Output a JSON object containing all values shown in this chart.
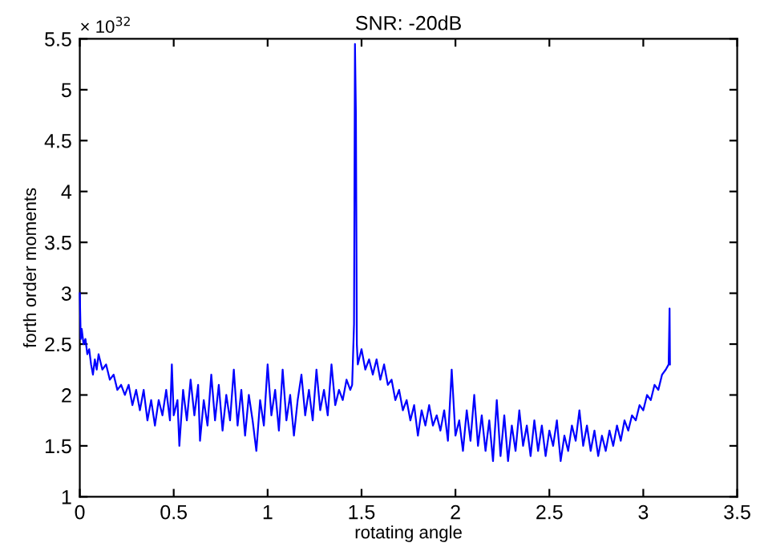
{
  "chart_data": {
    "type": "line",
    "title": "SNR: -20dB",
    "xlabel": "rotating angle",
    "ylabel": "forth order moments",
    "annotations": [
      "× 10$^{32}$"
    ],
    "xlim": [
      0,
      3.5
    ],
    "xticks": [
      0,
      0.5,
      1,
      1.5,
      2,
      2.5,
      3,
      3.5
    ],
    "ylim": [
      1,
      5.5
    ],
    "yticks": [
      1,
      1.5,
      2,
      2.5,
      3,
      3.5,
      4,
      4.5,
      5,
      5.5
    ],
    "grid": false,
    "legend": false,
    "marker": "none",
    "line_style": "solid",
    "series": [
      {
        "color": "#0000ff",
        "x": [
          0,
          0.005,
          0.01,
          0.02,
          0.03,
          0.04,
          0.05,
          0.06,
          0.07,
          0.08,
          0.09,
          0.1,
          0.12,
          0.14,
          0.16,
          0.18,
          0.2,
          0.22,
          0.24,
          0.26,
          0.28,
          0.3,
          0.32,
          0.34,
          0.36,
          0.38,
          0.4,
          0.42,
          0.44,
          0.46,
          0.48,
          0.49,
          0.5,
          0.52,
          0.53,
          0.55,
          0.57,
          0.59,
          0.61,
          0.63,
          0.64,
          0.66,
          0.68,
          0.7,
          0.72,
          0.74,
          0.76,
          0.78,
          0.8,
          0.82,
          0.84,
          0.86,
          0.88,
          0.9,
          0.92,
          0.94,
          0.96,
          0.98,
          1.0,
          1.02,
          1.04,
          1.06,
          1.08,
          1.1,
          1.12,
          1.14,
          1.16,
          1.18,
          1.2,
          1.22,
          1.24,
          1.26,
          1.28,
          1.3,
          1.32,
          1.34,
          1.36,
          1.38,
          1.4,
          1.42,
          1.44,
          1.45,
          1.46,
          1.465,
          1.47,
          1.475,
          1.48,
          1.5,
          1.52,
          1.54,
          1.56,
          1.58,
          1.6,
          1.62,
          1.64,
          1.66,
          1.68,
          1.7,
          1.72,
          1.74,
          1.76,
          1.78,
          1.8,
          1.82,
          1.84,
          1.86,
          1.88,
          1.9,
          1.92,
          1.94,
          1.96,
          1.98,
          2.0,
          2.02,
          2.04,
          2.06,
          2.08,
          2.1,
          2.12,
          2.14,
          2.16,
          2.18,
          2.2,
          2.22,
          2.24,
          2.26,
          2.28,
          2.3,
          2.32,
          2.34,
          2.36,
          2.38,
          2.4,
          2.42,
          2.44,
          2.46,
          2.48,
          2.5,
          2.52,
          2.54,
          2.56,
          2.58,
          2.6,
          2.62,
          2.64,
          2.66,
          2.68,
          2.7,
          2.72,
          2.74,
          2.76,
          2.78,
          2.8,
          2.82,
          2.84,
          2.86,
          2.88,
          2.9,
          2.92,
          2.94,
          2.96,
          2.98,
          3.0,
          3.02,
          3.04,
          3.06,
          3.08,
          3.1,
          3.12,
          3.135,
          3.14,
          3.142
        ],
        "values": [
          3.0,
          2.55,
          2.65,
          2.5,
          2.55,
          2.4,
          2.45,
          2.3,
          2.2,
          2.35,
          2.25,
          2.4,
          2.25,
          2.3,
          2.15,
          2.2,
          2.05,
          2.1,
          2.0,
          2.1,
          1.9,
          2.05,
          1.85,
          2.05,
          1.75,
          1.95,
          1.7,
          1.95,
          1.8,
          2.05,
          1.75,
          2.3,
          1.8,
          1.95,
          1.5,
          2.05,
          1.75,
          2.15,
          1.8,
          2.1,
          1.55,
          1.95,
          1.7,
          2.2,
          1.75,
          2.1,
          1.65,
          2.0,
          1.75,
          2.25,
          1.7,
          2.05,
          1.6,
          2.0,
          1.75,
          1.45,
          1.95,
          1.7,
          2.3,
          1.8,
          2.05,
          1.65,
          2.25,
          1.75,
          2.0,
          1.6,
          1.95,
          2.2,
          1.8,
          2.05,
          1.75,
          2.25,
          1.85,
          2.05,
          1.8,
          2.3,
          1.9,
          2.05,
          1.95,
          2.15,
          2.05,
          2.1,
          2.7,
          5.45,
          4.75,
          2.5,
          2.3,
          2.45,
          2.25,
          2.35,
          2.2,
          2.35,
          2.15,
          2.3,
          2.1,
          2.15,
          1.95,
          2.05,
          1.85,
          1.95,
          1.75,
          1.9,
          1.6,
          1.85,
          1.7,
          1.9,
          1.7,
          1.8,
          1.65,
          1.85,
          1.55,
          2.25,
          1.6,
          1.75,
          1.45,
          1.85,
          1.55,
          2.0,
          1.5,
          1.8,
          1.45,
          1.75,
          1.35,
          1.95,
          1.4,
          1.8,
          1.35,
          1.7,
          1.45,
          1.85,
          1.5,
          1.7,
          1.4,
          1.75,
          1.45,
          1.7,
          1.4,
          1.65,
          1.5,
          1.75,
          1.35,
          1.6,
          1.45,
          1.7,
          1.55,
          1.85,
          1.5,
          1.7,
          1.45,
          1.65,
          1.4,
          1.6,
          1.45,
          1.65,
          1.5,
          1.7,
          1.55,
          1.75,
          1.65,
          1.8,
          1.75,
          1.9,
          1.85,
          2.0,
          1.95,
          2.1,
          2.05,
          2.2,
          2.25,
          2.3,
          2.85,
          2.3
        ]
      }
    ]
  }
}
